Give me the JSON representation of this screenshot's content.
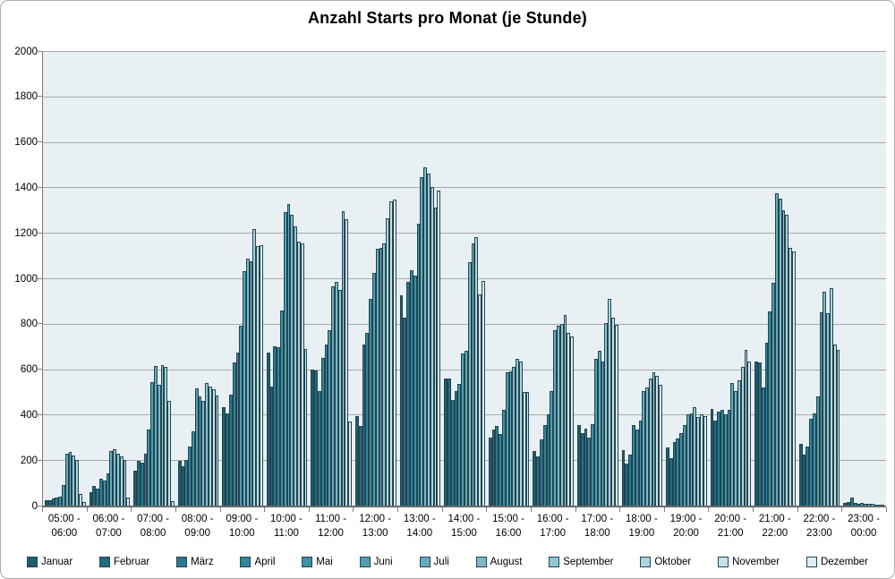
{
  "title": "Anzahl Starts pro Monat (je Stunde)",
  "colors": {
    "plot_background": "#e9f0f3",
    "gridline": "#a8a8a8",
    "axis": "#808080",
    "bar_border": "#22454f",
    "frame_border": "#ababab"
  },
  "chart_data": {
    "type": "bar",
    "title": "Anzahl Starts pro Monat (je Stunde)",
    "xlabel": "",
    "ylabel": "",
    "ylim": [
      0,
      2000
    ],
    "ytick_step": 200,
    "grid": true,
    "legend_position": "bottom",
    "categories": [
      "05:00 - 06:00",
      "06:00 - 07:00",
      "07:00 - 08:00",
      "08:00 - 09:00",
      "09:00 - 10:00",
      "10:00 - 11:00",
      "11:00 - 12:00",
      "12:00 - 13:00",
      "13:00 - 14:00",
      "14:00 - 15:00",
      "15:00 - 16:00",
      "16:00 - 17:00",
      "17:00 - 18:00",
      "18:00 - 19:00",
      "19:00 - 20:00",
      "20:00 - 21:00",
      "21:00 - 22:00",
      "22:00 - 23:00",
      "23:00 - 00:00"
    ],
    "series": [
      {
        "name": "Januar",
        "color": "#1d5d70",
        "values": [
          25,
          60,
          155,
          195,
          435,
          675,
          600,
          395,
          925,
          560,
          300,
          240,
          355,
          245,
          255,
          425,
          635,
          270,
          10
        ]
      },
      {
        "name": "Februar",
        "color": "#236b80",
        "values": [
          25,
          85,
          195,
          175,
          405,
          525,
          595,
          350,
          825,
          560,
          335,
          215,
          320,
          185,
          210,
          375,
          630,
          225,
          15
        ]
      },
      {
        "name": "März",
        "color": "#2a7890",
        "values": [
          30,
          75,
          190,
          200,
          490,
          700,
          505,
          710,
          985,
          465,
          350,
          290,
          340,
          225,
          280,
          415,
          520,
          260,
          35
        ]
      },
      {
        "name": "April",
        "color": "#31859c",
        "values": [
          35,
          120,
          230,
          260,
          630,
          695,
          650,
          760,
          1035,
          505,
          315,
          355,
          300,
          355,
          295,
          420,
          715,
          380,
          12
        ]
      },
      {
        "name": "Mai",
        "color": "#3d91a8",
        "values": [
          40,
          110,
          335,
          325,
          675,
          860,
          710,
          910,
          1010,
          535,
          420,
          400,
          360,
          335,
          320,
          400,
          855,
          405,
          8
        ]
      },
      {
        "name": "Juni",
        "color": "#4f9fb4",
        "values": [
          90,
          140,
          545,
          515,
          790,
          1290,
          770,
          1025,
          1240,
          670,
          585,
          505,
          645,
          375,
          355,
          420,
          980,
          480,
          10
        ]
      },
      {
        "name": "Juli",
        "color": "#63acbf",
        "values": [
          230,
          240,
          615,
          480,
          1030,
          1325,
          965,
          1130,
          1445,
          680,
          590,
          770,
          680,
          505,
          400,
          540,
          1375,
          850,
          8
        ]
      },
      {
        "name": "August",
        "color": "#7cbac9",
        "values": [
          235,
          250,
          530,
          460,
          1085,
          1280,
          985,
          1135,
          1490,
          1070,
          610,
          790,
          635,
          520,
          405,
          505,
          1350,
          940,
          8
        ]
      },
      {
        "name": "September",
        "color": "#92c7d4",
        "values": [
          220,
          228,
          620,
          540,
          1075,
          1230,
          950,
          1155,
          1460,
          1155,
          645,
          800,
          805,
          560,
          435,
          550,
          1300,
          845,
          6
        ]
      },
      {
        "name": "Oktober",
        "color": "#aad4de",
        "values": [
          200,
          215,
          610,
          525,
          1215,
          1160,
          1295,
          1265,
          1400,
          1180,
          635,
          840,
          910,
          585,
          390,
          610,
          1280,
          955,
          5
        ]
      },
      {
        "name": "November",
        "color": "#c5e2e8",
        "values": [
          50,
          200,
          460,
          510,
          1140,
          1155,
          1260,
          1340,
          1310,
          930,
          500,
          760,
          825,
          570,
          400,
          685,
          1135,
          710,
          5
        ]
      },
      {
        "name": "Dezember",
        "color": "#ddeef2",
        "values": [
          15,
          35,
          20,
          485,
          1145,
          690,
          370,
          1345,
          1385,
          990,
          500,
          745,
          795,
          530,
          395,
          635,
          1120,
          685,
          5
        ]
      }
    ]
  }
}
